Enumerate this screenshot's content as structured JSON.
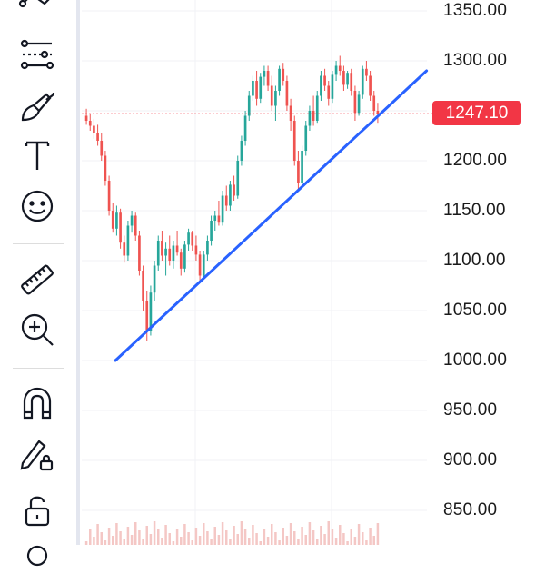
{
  "toolbar": {
    "tools": [
      {
        "name": "trend-line-tool-icon"
      },
      {
        "name": "fib-retracement-tool-icon"
      },
      {
        "name": "brush-tool-icon"
      },
      {
        "name": "text-tool-icon"
      },
      {
        "name": "emoji-tool-icon"
      },
      {
        "name": "measure-ruler-icon"
      },
      {
        "name": "zoom-in-icon"
      },
      {
        "name": "magnet-mode-icon"
      },
      {
        "name": "lock-drawings-icon"
      },
      {
        "name": "unlock-icon"
      }
    ]
  },
  "price_scale": {
    "ticks": [
      "1350.00",
      "1300.00",
      "1250.00",
      "1200.00",
      "1150.00",
      "1100.00",
      "1050.00",
      "1000.00",
      "950.00",
      "900.00",
      "850.00"
    ]
  },
  "current_price": {
    "label": "1247.10",
    "value": 1247.1
  },
  "colors": {
    "up": "#26a69a",
    "down": "#ef5350",
    "trend_line": "#2962ff",
    "price_badge": "#f23645",
    "volume_bars": "#f4c7c5",
    "grid": "#f0f2f6",
    "toolbar_icon": "#131722"
  },
  "chart_data": {
    "type": "candlestick",
    "y_axis": {
      "min": 850,
      "max": 1350,
      "position": "right"
    },
    "grid": true,
    "candles_ohlc": [
      [
        1245,
        1252,
        1236,
        1240
      ],
      [
        1240,
        1247,
        1230,
        1235
      ],
      [
        1235,
        1242,
        1222,
        1228
      ],
      [
        1228,
        1236,
        1215,
        1220
      ],
      [
        1220,
        1228,
        1200,
        1205
      ],
      [
        1205,
        1210,
        1175,
        1180
      ],
      [
        1180,
        1185,
        1145,
        1150
      ],
      [
        1150,
        1158,
        1128,
        1132
      ],
      [
        1132,
        1155,
        1125,
        1148
      ],
      [
        1148,
        1152,
        1112,
        1118
      ],
      [
        1118,
        1125,
        1098,
        1105
      ],
      [
        1105,
        1140,
        1100,
        1135
      ],
      [
        1135,
        1150,
        1128,
        1145
      ],
      [
        1145,
        1148,
        1120,
        1125
      ],
      [
        1125,
        1130,
        1085,
        1090
      ],
      [
        1090,
        1095,
        1050,
        1060
      ],
      [
        1060,
        1070,
        1020,
        1030
      ],
      [
        1030,
        1075,
        1025,
        1068
      ],
      [
        1068,
        1100,
        1060,
        1095
      ],
      [
        1095,
        1125,
        1090,
        1120
      ],
      [
        1120,
        1130,
        1100,
        1105
      ],
      [
        1105,
        1118,
        1085,
        1112
      ],
      [
        1112,
        1125,
        1095,
        1100
      ],
      [
        1100,
        1120,
        1092,
        1115
      ],
      [
        1115,
        1130,
        1105,
        1108
      ],
      [
        1108,
        1112,
        1085,
        1092
      ],
      [
        1092,
        1120,
        1088,
        1116
      ],
      [
        1116,
        1132,
        1110,
        1128
      ],
      [
        1128,
        1130,
        1110,
        1115
      ],
      [
        1115,
        1125,
        1100,
        1106
      ],
      [
        1106,
        1110,
        1080,
        1085
      ],
      [
        1085,
        1110,
        1082,
        1106
      ],
      [
        1106,
        1125,
        1100,
        1120
      ],
      [
        1120,
        1145,
        1115,
        1140
      ],
      [
        1140,
        1150,
        1130,
        1145
      ],
      [
        1145,
        1160,
        1135,
        1138
      ],
      [
        1138,
        1170,
        1135,
        1165
      ],
      [
        1165,
        1175,
        1150,
        1155
      ],
      [
        1155,
        1180,
        1150,
        1176
      ],
      [
        1176,
        1185,
        1160,
        1165
      ],
      [
        1165,
        1205,
        1162,
        1200
      ],
      [
        1200,
        1225,
        1195,
        1220
      ],
      [
        1220,
        1250,
        1215,
        1245
      ],
      [
        1245,
        1270,
        1240,
        1265
      ],
      [
        1265,
        1285,
        1260,
        1280
      ],
      [
        1280,
        1290,
        1255,
        1262
      ],
      [
        1262,
        1288,
        1258,
        1284
      ],
      [
        1284,
        1295,
        1275,
        1290
      ],
      [
        1290,
        1295,
        1270,
        1275
      ],
      [
        1275,
        1285,
        1250,
        1255
      ],
      [
        1255,
        1275,
        1240,
        1270
      ],
      [
        1270,
        1295,
        1265,
        1292
      ],
      [
        1292,
        1298,
        1275,
        1280
      ],
      [
        1280,
        1285,
        1250,
        1255
      ],
      [
        1255,
        1262,
        1230,
        1240
      ],
      [
        1240,
        1245,
        1195,
        1200
      ],
      [
        1200,
        1210,
        1170,
        1178
      ],
      [
        1178,
        1215,
        1172,
        1210
      ],
      [
        1210,
        1240,
        1205,
        1235
      ],
      [
        1235,
        1255,
        1230,
        1250
      ],
      [
        1250,
        1265,
        1235,
        1240
      ],
      [
        1240,
        1270,
        1238,
        1265
      ],
      [
        1265,
        1290,
        1260,
        1285
      ],
      [
        1285,
        1292,
        1270,
        1275
      ],
      [
        1275,
        1280,
        1255,
        1262
      ],
      [
        1262,
        1290,
        1258,
        1286
      ],
      [
        1286,
        1300,
        1280,
        1295
      ],
      [
        1295,
        1305,
        1285,
        1290
      ],
      [
        1290,
        1295,
        1270,
        1276
      ],
      [
        1276,
        1290,
        1272,
        1288
      ],
      [
        1288,
        1292,
        1265,
        1270
      ],
      [
        1270,
        1275,
        1240,
        1248
      ],
      [
        1248,
        1270,
        1245,
        1266
      ],
      [
        1266,
        1295,
        1262,
        1292
      ],
      [
        1292,
        1300,
        1280,
        1285
      ],
      [
        1285,
        1290,
        1260,
        1265
      ],
      [
        1265,
        1270,
        1245,
        1250
      ],
      [
        1250,
        1258,
        1238,
        1247.1
      ]
    ],
    "trend_line": {
      "points": [
        [
          0.15,
          1000
        ],
        [
          0.92,
          1290
        ]
      ]
    },
    "current_price_line": 1247.1
  }
}
